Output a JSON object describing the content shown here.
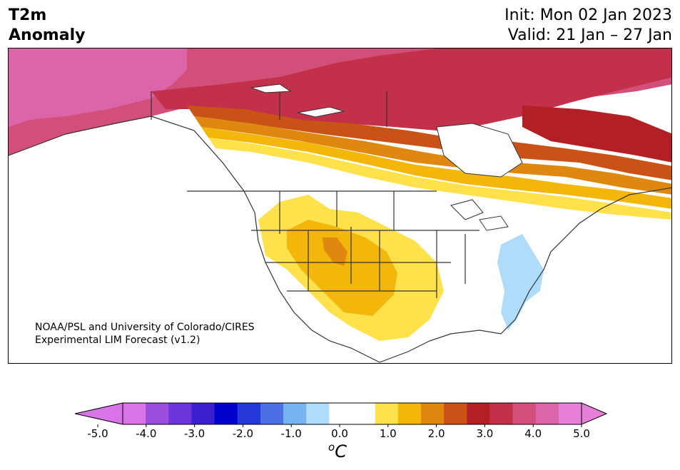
{
  "title": {
    "line1": "T2m",
    "line2": "Anomaly"
  },
  "info": {
    "init": "Init: Mon 02 Jan 2023",
    "valid": "Valid: 21 Jan – 27 Jan"
  },
  "credit": {
    "line1": "NOAA/PSL and University of Colorado/CIRES",
    "line2": "Experimental LIM Forecast (v1.2)"
  },
  "colorbar": {
    "unit_sup": "o",
    "unit": "C",
    "ticks": [
      "-5.0",
      "-4.0",
      "-3.0",
      "-2.0",
      "-1.0",
      "0.0",
      "1.0",
      "2.0",
      "3.0",
      "4.0",
      "5.0"
    ],
    "colors": [
      "#d873e8",
      "#9a4fdc",
      "#6a36d9",
      "#3a1fcf",
      "#0000cd",
      "#2437d8",
      "#4d6fe3",
      "#78b4f0",
      "#aedcfa",
      "#ffffff",
      "#ffffff",
      "#ffe14b",
      "#f3b60a",
      "#de880f",
      "#c95317",
      "#b21f24",
      "#c2304a",
      "#d24f7a",
      "#dc64a8",
      "#e57fd8"
    ],
    "under_color": "#d873e8",
    "over_color": "#e57fd8"
  },
  "map_colors": {
    "anom_5": "#d24f7a",
    "anom_4": "#c2304a",
    "anom_3": "#b21f24",
    "anom_25": "#c95317",
    "anom_2": "#de880f",
    "anom_15": "#f3b60a",
    "anom_1": "#ffe14b",
    "anom_neg1": "#aedcfa",
    "pink_core": "#dc64a8"
  }
}
